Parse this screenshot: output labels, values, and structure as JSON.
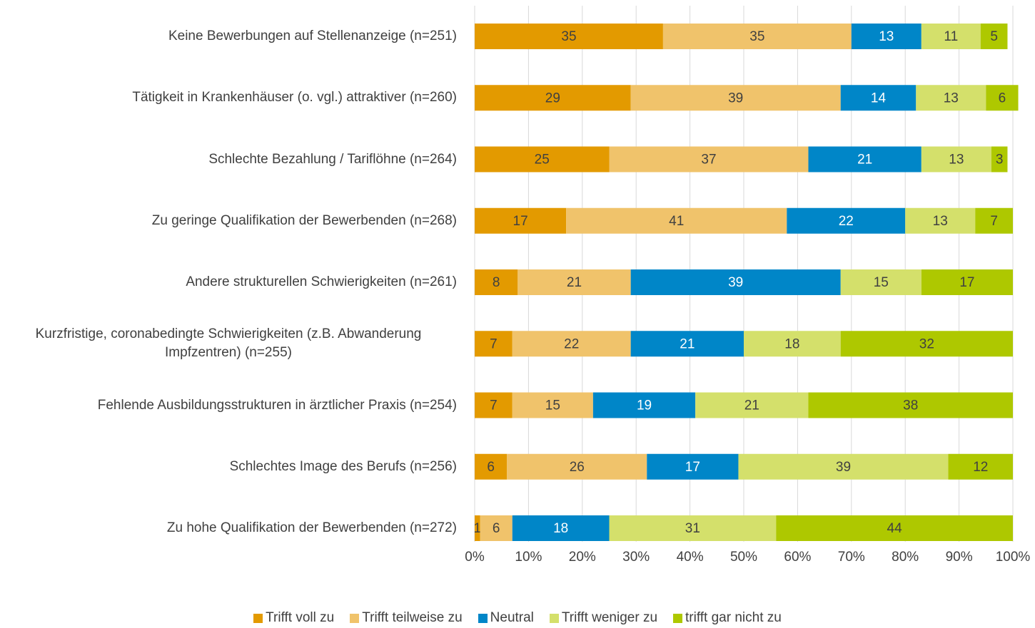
{
  "chart_data": {
    "type": "bar",
    "orientation": "horizontal",
    "stacked": true,
    "categories": [
      "Keine Bewerbungen auf Stellenanzeige (n=251)",
      "Tätigkeit in Krankenhäuser (o. vgl.) attraktiver (n=260)",
      "Schlechte Bezahlung / Tariflöhne (n=264)",
      "Zu geringe Qualifikation der Bewerbenden (n=268)",
      "Andere strukturellen Schwierigkeiten (n=261)",
      "Kurzfristige, coronabedingte Schwierigkeiten (z.B. Abwanderung Impfzentren) (n=255)",
      "Fehlende Ausbildungsstrukturen in ärztlicher Praxis (n=254)",
      "Schlechtes Image des Berufs  (n=256)",
      "Zu hohe Qualifikation der Bewerbenden (n=272)"
    ],
    "series": [
      {
        "name": "Trifft voll zu",
        "color": "#e39a00",
        "values": [
          35,
          29,
          25,
          17,
          8,
          7,
          7,
          6,
          1
        ]
      },
      {
        "name": "Trifft teilweise zu",
        "color": "#f0c36b",
        "values": [
          35,
          39,
          37,
          41,
          21,
          22,
          15,
          26,
          6
        ]
      },
      {
        "name": "Neutral",
        "color": "#0086c8",
        "values": [
          13,
          14,
          21,
          22,
          39,
          21,
          19,
          17,
          18
        ]
      },
      {
        "name": "Trifft weniger zu",
        "color": "#d4e06b",
        "values": [
          11,
          13,
          13,
          13,
          15,
          18,
          21,
          39,
          31
        ]
      },
      {
        "name": "trifft gar nicht zu",
        "color": "#aec800",
        "values": [
          5,
          6,
          3,
          7,
          17,
          32,
          38,
          12,
          44
        ]
      }
    ],
    "xlim": [
      0,
      100
    ],
    "xticks": [
      {
        "value": 0,
        "label": "0%"
      },
      {
        "value": 10,
        "label": "10%"
      },
      {
        "value": 20,
        "label": "20%"
      },
      {
        "value": 30,
        "label": "30%"
      },
      {
        "value": 40,
        "label": "40%"
      },
      {
        "value": 50,
        "label": "50%"
      },
      {
        "value": 60,
        "label": "60%"
      },
      {
        "value": 70,
        "label": "70%"
      },
      {
        "value": 80,
        "label": "80%"
      },
      {
        "value": 90,
        "label": "90%"
      },
      {
        "value": 100,
        "label": "100%"
      }
    ],
    "grid": true,
    "legend": "bottom"
  }
}
